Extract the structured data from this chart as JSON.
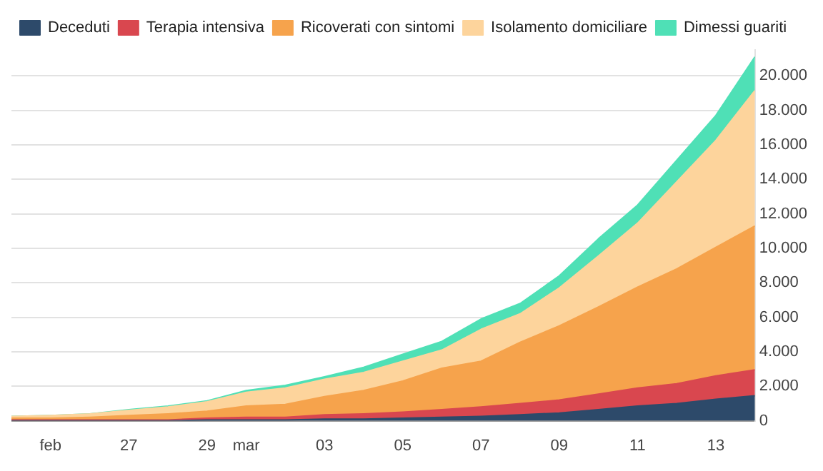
{
  "chart_data": {
    "type": "area",
    "stacked": true,
    "legend": "top left",
    "grid": "y",
    "marker": "none",
    "x": [
      "--02-24",
      "--02-25",
      "--02-26",
      "--02-27",
      "--02-28",
      "--02-29",
      "--03-01",
      "--03-02",
      "--03-03",
      "--03-04",
      "--03-05",
      "--03-06",
      "--03-07",
      "--03-08",
      "--03-09",
      "--03-10",
      "--03-11",
      "--03-12",
      "--03-13",
      "--03-14"
    ],
    "xlim": [
      "--02-24",
      "--03-14"
    ],
    "xticks": [
      {
        "value": "--02-25",
        "label": "feb"
      },
      {
        "value": "--02-27",
        "label": "27"
      },
      {
        "value": "--02-29",
        "label": "29"
      },
      {
        "value": "--03-01",
        "label": "mar"
      },
      {
        "value": "--03-03",
        "label": "03"
      },
      {
        "value": "--03-05",
        "label": "05"
      },
      {
        "value": "--03-07",
        "label": "07"
      },
      {
        "value": "--03-09",
        "label": "09"
      },
      {
        "value": "--03-11",
        "label": "11"
      },
      {
        "value": "--03-13",
        "label": "13"
      }
    ],
    "ylim": [
      0,
      21500
    ],
    "yticks": [
      0,
      {
        "value": 2000,
        "label": "2.000"
      },
      {
        "value": 4000,
        "label": "4.000"
      },
      {
        "value": 6000,
        "label": "6.000"
      },
      {
        "value": 8000,
        "label": "8.000"
      },
      {
        "value": 10000,
        "label": "10.000"
      },
      {
        "value": 12000,
        "label": "12.000"
      },
      {
        "value": 14000,
        "label": "14.000"
      },
      {
        "value": 16000,
        "label": "16.000"
      },
      {
        "value": 18000,
        "label": "18.000"
      },
      {
        "value": 20000,
        "label": "20.000"
      }
    ],
    "series": [
      {
        "name": "Deceduti",
        "color": "#2d4a6a",
        "values": [
          0,
          0,
          0,
          0,
          0,
          50,
          50,
          50,
          100,
          100,
          150,
          200,
          250,
          350,
          450,
          650,
          850,
          1000,
          1250,
          1450
        ]
      },
      {
        "name": "Terapia intensiva",
        "color": "#d9474f",
        "values": [
          50,
          50,
          50,
          50,
          50,
          100,
          150,
          150,
          250,
          300,
          350,
          450,
          550,
          650,
          750,
          900,
          1050,
          1150,
          1350,
          1500
        ]
      },
      {
        "name": "Ricoverati con sintomi",
        "color": "#f6a34c",
        "values": [
          100,
          100,
          150,
          250,
          350,
          400,
          650,
          750,
          1050,
          1350,
          1800,
          2400,
          2650,
          3550,
          4300,
          5050,
          5850,
          6650,
          7450,
          8350
        ]
      },
      {
        "name": "Isolamento domiciliare",
        "color": "#fdd49c",
        "values": [
          100,
          150,
          200,
          300,
          400,
          550,
          800,
          950,
          1000,
          1050,
          1150,
          1050,
          1850,
          1650,
          2200,
          2950,
          3700,
          5050,
          6200,
          7850
        ]
      },
      {
        "name": "Dimessi guariti",
        "color": "#4fe0b6",
        "values": [
          0,
          0,
          0,
          50,
          50,
          50,
          100,
          150,
          150,
          300,
          400,
          500,
          600,
          600,
          700,
          1000,
          1050,
          1250,
          1450,
          1950
        ]
      }
    ]
  }
}
